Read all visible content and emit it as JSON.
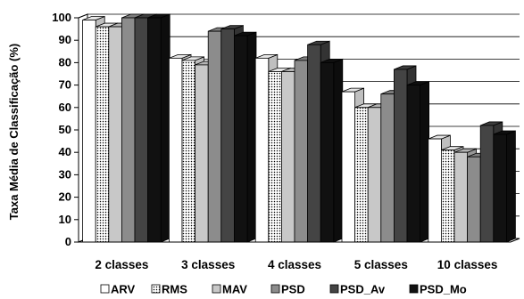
{
  "chart_data": {
    "type": "bar",
    "title": "",
    "xlabel": "",
    "ylabel": "Taxa Média de Classificação (%)",
    "ylim": [
      0,
      100
    ],
    "yticks": [
      0,
      10,
      20,
      30,
      40,
      50,
      60,
      70,
      80,
      90,
      100
    ],
    "grid": true,
    "style": "3d-clustered",
    "legend_position": "bottom",
    "categories": [
      "2 classes",
      "3 classes",
      "4 classes",
      "5 classes",
      "10 classes"
    ],
    "series": [
      {
        "name": "ARV",
        "values": [
          99,
          82,
          82,
          67,
          46
        ],
        "color": "#ffffff",
        "pattern": "none"
      },
      {
        "name": "RMS",
        "values": [
          96,
          81,
          76,
          60,
          41
        ],
        "color": "#ffffff",
        "pattern": "dots"
      },
      {
        "name": "MAV",
        "values": [
          96,
          79,
          76,
          60,
          40
        ],
        "color": "#c8c8c8",
        "pattern": "none"
      },
      {
        "name": "PSD",
        "values": [
          100,
          94,
          81,
          66,
          38
        ],
        "color": "#8c8c8c",
        "pattern": "none"
      },
      {
        "name": "PSD_Av",
        "values": [
          100,
          95,
          88,
          77,
          52
        ],
        "color": "#444444",
        "pattern": "none"
      },
      {
        "name": "PSD_Mo",
        "values": [
          100,
          92,
          80,
          70,
          48
        ],
        "color": "#111111",
        "pattern": "none"
      }
    ]
  }
}
